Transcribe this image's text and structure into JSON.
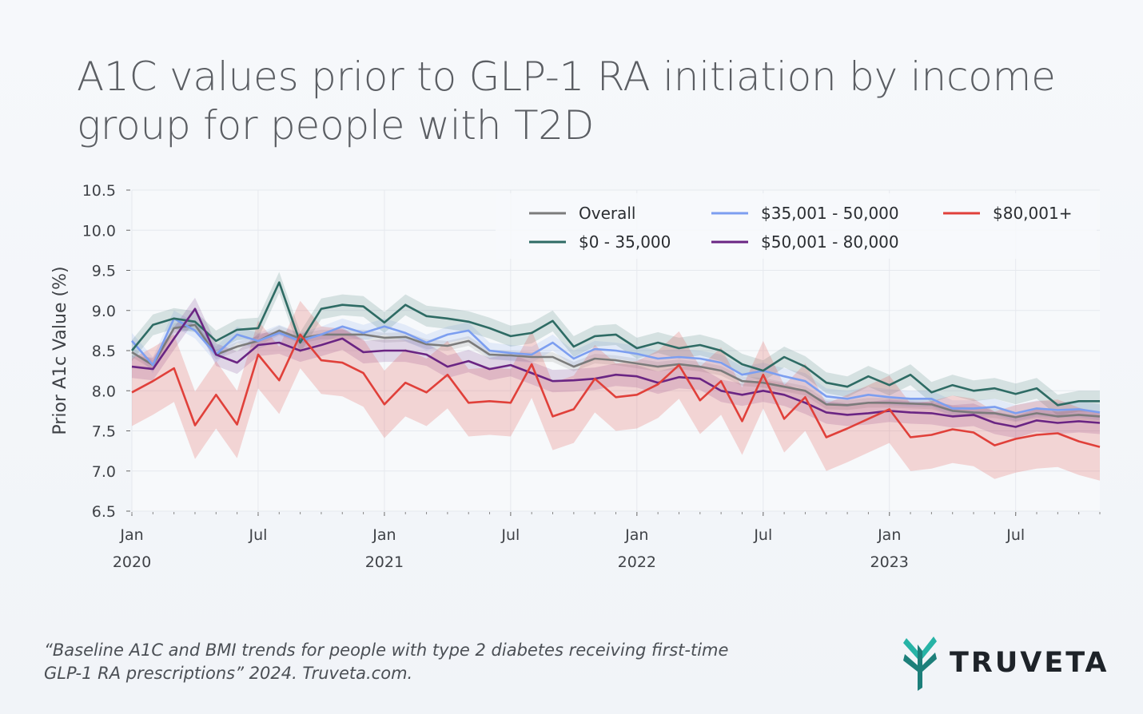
{
  "title": "A1C values prior to GLP-1 RA initiation by income group for people with T2D",
  "citation": {
    "line1": "“Baseline A1C and BMI trends for people with type 2 diabetes receiving first-time",
    "line2": "GLP-1 RA prescriptions” 2024. Truveta.com."
  },
  "logo": {
    "text": "TRUVETA",
    "icon": "truveta-leaf-logo-icon",
    "colors": [
      "#27b3a6",
      "#1d7f7a"
    ]
  },
  "chart_data": {
    "type": "line",
    "ylabel": "Prior A1c Value (%)",
    "xlabel": "",
    "ylim": [
      6.5,
      10.5
    ],
    "yticks": [
      "10.5",
      "10.0",
      "9.5",
      "9.0",
      "8.5",
      "8.0",
      "7.5",
      "7.0",
      "6.5"
    ],
    "xlim": [
      0,
      46
    ],
    "xticks": [
      {
        "month": 0,
        "line1": "Jan",
        "line2": "2020"
      },
      {
        "month": 6,
        "line1": "Jul",
        "line2": ""
      },
      {
        "month": 12,
        "line1": "Jan",
        "line2": "2021"
      },
      {
        "month": 18,
        "line1": "Jul",
        "line2": ""
      },
      {
        "month": 24,
        "line1": "Jan",
        "line2": "2022"
      },
      {
        "month": 30,
        "line1": "Jul",
        "line2": ""
      },
      {
        "month": 36,
        "line1": "Jan",
        "line2": "2023"
      },
      {
        "month": 42,
        "line1": "Jul",
        "line2": ""
      }
    ],
    "x_unit": "months since Jan 2020",
    "grid": true,
    "legend": "top-right",
    "series": [
      {
        "name": "Overall",
        "color": "#7b7b7b",
        "ci": 0.06,
        "points": [
          [
            0,
            8.48
          ],
          [
            1,
            8.32
          ],
          [
            2,
            8.78
          ],
          [
            3,
            8.82
          ],
          [
            4,
            8.45
          ],
          [
            5,
            8.55
          ],
          [
            6,
            8.62
          ],
          [
            7,
            8.75
          ],
          [
            8,
            8.65
          ],
          [
            9,
            8.7
          ],
          [
            10,
            8.7
          ],
          [
            11,
            8.7
          ],
          [
            12,
            8.66
          ],
          [
            13,
            8.67
          ],
          [
            14,
            8.58
          ],
          [
            15,
            8.56
          ],
          [
            16,
            8.62
          ],
          [
            17,
            8.45
          ],
          [
            18,
            8.44
          ],
          [
            19,
            8.42
          ],
          [
            20,
            8.42
          ],
          [
            21,
            8.3
          ],
          [
            22,
            8.4
          ],
          [
            23,
            8.38
          ],
          [
            24,
            8.34
          ],
          [
            25,
            8.3
          ],
          [
            26,
            8.33
          ],
          [
            27,
            8.3
          ],
          [
            28,
            8.25
          ],
          [
            29,
            8.12
          ],
          [
            30,
            8.1
          ],
          [
            31,
            8.05
          ],
          [
            32,
            8.0
          ],
          [
            33,
            7.83
          ],
          [
            34,
            7.82
          ],
          [
            35,
            7.85
          ],
          [
            36,
            7.85
          ],
          [
            37,
            7.84
          ],
          [
            38,
            7.83
          ],
          [
            39,
            7.75
          ],
          [
            40,
            7.73
          ],
          [
            41,
            7.72
          ],
          [
            42,
            7.67
          ],
          [
            43,
            7.72
          ],
          [
            44,
            7.68
          ],
          [
            45,
            7.7
          ],
          [
            46,
            7.68
          ]
        ]
      },
      {
        "name": "$35,001 - 50,000",
        "color": "#7c9ef0",
        "ci": 0.1,
        "points": [
          [
            0,
            8.62
          ],
          [
            1,
            8.32
          ],
          [
            2,
            8.9
          ],
          [
            3,
            8.75
          ],
          [
            4,
            8.45
          ],
          [
            5,
            8.7
          ],
          [
            6,
            8.62
          ],
          [
            7,
            8.72
          ],
          [
            8,
            8.62
          ],
          [
            9,
            8.7
          ],
          [
            10,
            8.8
          ],
          [
            11,
            8.72
          ],
          [
            12,
            8.8
          ],
          [
            13,
            8.72
          ],
          [
            14,
            8.6
          ],
          [
            15,
            8.7
          ],
          [
            16,
            8.75
          ],
          [
            17,
            8.5
          ],
          [
            18,
            8.47
          ],
          [
            19,
            8.45
          ],
          [
            20,
            8.6
          ],
          [
            21,
            8.4
          ],
          [
            22,
            8.52
          ],
          [
            23,
            8.5
          ],
          [
            24,
            8.46
          ],
          [
            25,
            8.4
          ],
          [
            26,
            8.42
          ],
          [
            27,
            8.4
          ],
          [
            28,
            8.35
          ],
          [
            29,
            8.2
          ],
          [
            30,
            8.25
          ],
          [
            31,
            8.18
          ],
          [
            32,
            8.12
          ],
          [
            33,
            7.93
          ],
          [
            34,
            7.9
          ],
          [
            35,
            7.95
          ],
          [
            36,
            7.92
          ],
          [
            37,
            7.9
          ],
          [
            38,
            7.9
          ],
          [
            39,
            7.78
          ],
          [
            40,
            7.78
          ],
          [
            41,
            7.8
          ],
          [
            42,
            7.72
          ],
          [
            43,
            7.78
          ],
          [
            44,
            7.76
          ],
          [
            45,
            7.77
          ],
          [
            46,
            7.73
          ]
        ]
      },
      {
        "name": "$0 - 35,000",
        "color": "#2e6b64",
        "ci": 0.13,
        "points": [
          [
            0,
            8.5
          ],
          [
            1,
            8.82
          ],
          [
            2,
            8.9
          ],
          [
            3,
            8.86
          ],
          [
            4,
            8.62
          ],
          [
            5,
            8.76
          ],
          [
            6,
            8.78
          ],
          [
            7,
            9.35
          ],
          [
            8,
            8.6
          ],
          [
            9,
            9.02
          ],
          [
            10,
            9.07
          ],
          [
            11,
            9.05
          ],
          [
            12,
            8.85
          ],
          [
            13,
            9.07
          ],
          [
            14,
            8.93
          ],
          [
            15,
            8.9
          ],
          [
            16,
            8.86
          ],
          [
            17,
            8.78
          ],
          [
            18,
            8.68
          ],
          [
            19,
            8.72
          ],
          [
            20,
            8.87
          ],
          [
            21,
            8.55
          ],
          [
            22,
            8.68
          ],
          [
            23,
            8.7
          ],
          [
            24,
            8.53
          ],
          [
            25,
            8.6
          ],
          [
            26,
            8.53
          ],
          [
            27,
            8.57
          ],
          [
            28,
            8.5
          ],
          [
            29,
            8.33
          ],
          [
            30,
            8.25
          ],
          [
            31,
            8.42
          ],
          [
            32,
            8.3
          ],
          [
            33,
            8.1
          ],
          [
            34,
            8.05
          ],
          [
            35,
            8.18
          ],
          [
            36,
            8.07
          ],
          [
            37,
            8.2
          ],
          [
            38,
            7.98
          ],
          [
            39,
            8.07
          ],
          [
            40,
            8.0
          ],
          [
            41,
            8.03
          ],
          [
            42,
            7.96
          ],
          [
            43,
            8.03
          ],
          [
            44,
            7.82
          ],
          [
            45,
            7.87
          ],
          [
            46,
            7.87
          ]
        ]
      },
      {
        "name": "$50,001 - 80,000",
        "color": "#6a2583",
        "ci": 0.14,
        "points": [
          [
            0,
            8.3
          ],
          [
            1,
            8.27
          ],
          [
            2,
            8.65
          ],
          [
            3,
            9.02
          ],
          [
            4,
            8.45
          ],
          [
            5,
            8.35
          ],
          [
            6,
            8.57
          ],
          [
            7,
            8.6
          ],
          [
            8,
            8.5
          ],
          [
            9,
            8.57
          ],
          [
            10,
            8.65
          ],
          [
            11,
            8.48
          ],
          [
            12,
            8.5
          ],
          [
            13,
            8.5
          ],
          [
            14,
            8.45
          ],
          [
            15,
            8.3
          ],
          [
            16,
            8.37
          ],
          [
            17,
            8.27
          ],
          [
            18,
            8.32
          ],
          [
            19,
            8.22
          ],
          [
            20,
            8.12
          ],
          [
            21,
            8.13
          ],
          [
            22,
            8.15
          ],
          [
            23,
            8.2
          ],
          [
            24,
            8.18
          ],
          [
            25,
            8.1
          ],
          [
            26,
            8.17
          ],
          [
            27,
            8.15
          ],
          [
            28,
            8.0
          ],
          [
            29,
            7.95
          ],
          [
            30,
            8.0
          ],
          [
            31,
            7.95
          ],
          [
            32,
            7.85
          ],
          [
            33,
            7.73
          ],
          [
            34,
            7.7
          ],
          [
            35,
            7.72
          ],
          [
            36,
            7.75
          ],
          [
            37,
            7.73
          ],
          [
            38,
            7.72
          ],
          [
            39,
            7.68
          ],
          [
            40,
            7.7
          ],
          [
            41,
            7.6
          ],
          [
            42,
            7.55
          ],
          [
            43,
            7.63
          ],
          [
            44,
            7.6
          ],
          [
            45,
            7.62
          ],
          [
            46,
            7.6
          ]
        ]
      },
      {
        "name": "$80,001+",
        "color": "#e0403a",
        "ci": 0.42,
        "points": [
          [
            0,
            7.98
          ],
          [
            1,
            8.12
          ],
          [
            2,
            8.28
          ],
          [
            3,
            7.57
          ],
          [
            4,
            7.95
          ],
          [
            5,
            7.58
          ],
          [
            6,
            8.45
          ],
          [
            7,
            8.13
          ],
          [
            8,
            8.7
          ],
          [
            9,
            8.38
          ],
          [
            10,
            8.35
          ],
          [
            11,
            8.22
          ],
          [
            12,
            7.83
          ],
          [
            13,
            8.1
          ],
          [
            14,
            7.98
          ],
          [
            15,
            8.2
          ],
          [
            16,
            7.85
          ],
          [
            17,
            7.87
          ],
          [
            18,
            7.85
          ],
          [
            19,
            8.33
          ],
          [
            20,
            7.68
          ],
          [
            21,
            7.77
          ],
          [
            22,
            8.15
          ],
          [
            23,
            7.92
          ],
          [
            24,
            7.95
          ],
          [
            25,
            8.08
          ],
          [
            26,
            8.32
          ],
          [
            27,
            7.88
          ],
          [
            28,
            8.12
          ],
          [
            29,
            7.62
          ],
          [
            30,
            8.2
          ],
          [
            31,
            7.65
          ],
          [
            32,
            7.92
          ],
          [
            33,
            7.42
          ],
          [
            34,
            7.53
          ],
          [
            35,
            7.65
          ],
          [
            36,
            7.77
          ],
          [
            37,
            7.42
          ],
          [
            38,
            7.45
          ],
          [
            39,
            7.52
          ],
          [
            40,
            7.48
          ],
          [
            41,
            7.32
          ],
          [
            42,
            7.4
          ],
          [
            43,
            7.45
          ],
          [
            44,
            7.47
          ],
          [
            45,
            7.37
          ],
          [
            46,
            7.3
          ]
        ]
      }
    ],
    "legend_order": [
      "Overall",
      "$35,001 - 50,000",
      "$80,001+",
      "$0 - 35,000",
      "$50,001 - 80,000"
    ]
  }
}
